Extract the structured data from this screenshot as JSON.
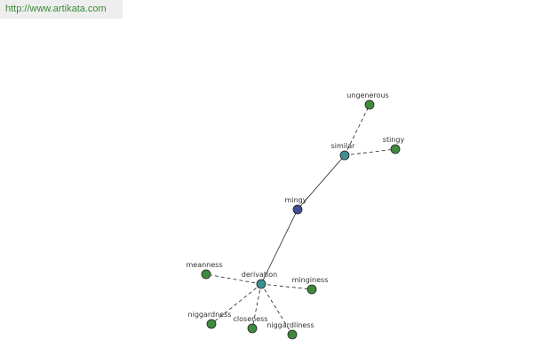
{
  "header": {
    "url": "http://www.artikata.com"
  },
  "nodes": [
    {
      "label": "mingy"
    },
    {
      "label": "similar"
    },
    {
      "label": "derivation"
    },
    {
      "label": "ungenerous"
    },
    {
      "label": "stingy"
    },
    {
      "label": "meanness"
    },
    {
      "label": "minginess"
    },
    {
      "label": "niggardness"
    },
    {
      "label": "closeness"
    },
    {
      "label": "niggardliness"
    }
  ]
}
